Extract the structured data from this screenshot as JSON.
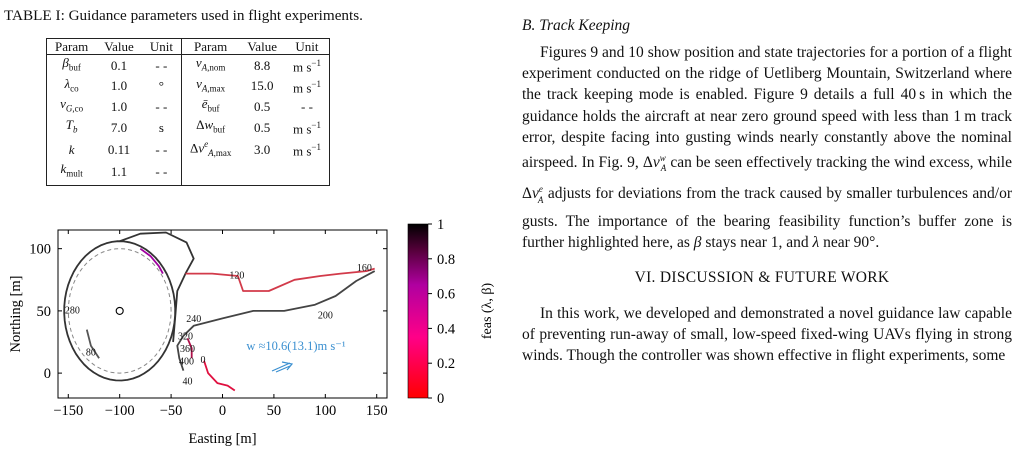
{
  "left": {
    "table": {
      "caption": "TABLE I: Guidance parameters used in flight experiments.",
      "headers": [
        "Param",
        "Value",
        "Unit",
        "Param",
        "Value",
        "Unit"
      ],
      "rows": [
        {
          "p1": "β_buf",
          "v1": "0.1",
          "u1": "- -",
          "p2": "v_A,nom",
          "v2": "8.8",
          "u2": "m s⁻¹"
        },
        {
          "p1": "λ_co",
          "v1": "1.0",
          "u1": "°",
          "p2": "v_A,max",
          "v2": "15.0",
          "u2": "m s⁻¹"
        },
        {
          "p1": "v_G,co",
          "v1": "1.0",
          "u1": "- -",
          "p2": "ē_buf",
          "v2": "0.5",
          "u2": "- -"
        },
        {
          "p1": "T_b",
          "v1": "7.0",
          "u1": "s",
          "p2": "Δw_buf",
          "v2": "0.5",
          "u2": "m s⁻¹"
        },
        {
          "p1": "k",
          "v1": "0.11",
          "u1": "- -",
          "p2": "Δv^e_A,max",
          "v2": "3.0",
          "u2": "m s⁻¹"
        },
        {
          "p1": "k_mult",
          "v1": "1.1",
          "u1": "- -",
          "p2": "",
          "v2": "",
          "u2": ""
        }
      ]
    }
  },
  "chart_data": {
    "type": "line",
    "xlabel": "Easting [m]",
    "ylabel": "Northing [m]",
    "xlim": [
      -160,
      160
    ],
    "ylim": [
      -20,
      115
    ],
    "xticks": [
      -150,
      -100,
      -50,
      0,
      50,
      100,
      150
    ],
    "yticks": [
      0,
      50,
      100
    ],
    "colorbar": {
      "label": "feas (λ, β)",
      "ticks": [
        "0",
        "0.2",
        "0.4",
        "0.6",
        "0.8",
        "1"
      ],
      "range": [
        0,
        1
      ]
    },
    "wind_label": "w ≈10.6(13.1)m s⁻¹",
    "time_labels": [
      {
        "text": "0",
        "x": -19,
        "y": 8
      },
      {
        "text": "40",
        "x": -34,
        "y": -9
      },
      {
        "text": "80",
        "x": -128,
        "y": 14
      },
      {
        "text": "120",
        "x": 14,
        "y": 76
      },
      {
        "text": "160",
        "x": 138,
        "y": 82
      },
      {
        "text": "200",
        "x": 100,
        "y": 44
      },
      {
        "text": "240",
        "x": -28,
        "y": 41
      },
      {
        "text": "280",
        "x": -146,
        "y": 48
      },
      {
        "text": "320",
        "x": -36,
        "y": 27
      },
      {
        "text": "360",
        "x": -34,
        "y": 17
      },
      {
        "text": "400",
        "x": -35,
        "y": 7
      }
    ],
    "loiter_center": [
      -100,
      50
    ],
    "loiter_radius": 50
  },
  "right": {
    "section_title": "B. Track Keeping",
    "para1": "Figures 9 and 10 show position and state trajectories for a portion of a flight experiment conducted on the ridge of Uetliberg Mountain, Switzerland where the track keeping mode is enabled. Figure 9 details a full 40 s in which the guidance holds the aircraft at near zero ground speed with less than 1 m track error, despite facing into gusting winds nearly constantly above the nominal airspeed. In Fig. 9, Δv^w_A can be seen effectively tracking the wind excess, while Δv^e_A adjusts for deviations from the track caused by smaller turbulences and/or gusts. The importance of the bearing feasibility function’s buffer zone is further highlighted here, as β stays near 1, and λ near 90°.",
    "heading": "VI. DISCUSSION & FUTURE WORK",
    "para2": "In this work, we developed and demonstrated a novel guidance law capable of preventing run-away of small, low-speed fixed-wing UAVs flying in strong winds. Though the controller was shown effective in flight experiments, some"
  }
}
